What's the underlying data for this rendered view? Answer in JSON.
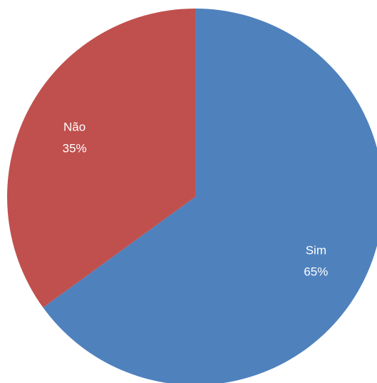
{
  "chart_data": {
    "type": "pie",
    "title": "",
    "start_angle_deg": 0,
    "direction": "clockwise",
    "slices": [
      {
        "label": "Sim",
        "value": 65,
        "value_label": "65%",
        "color": "#4F81BD"
      },
      {
        "label": "Não",
        "value": 35,
        "value_label": "35%",
        "color": "#C0504D"
      }
    ],
    "legend": "none",
    "data_labels": "inside"
  }
}
